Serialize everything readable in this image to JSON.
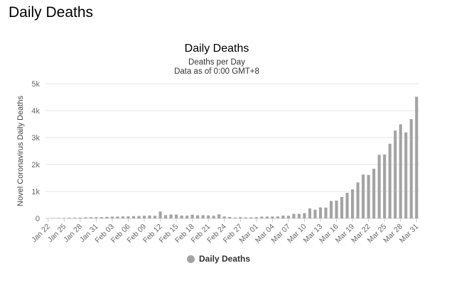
{
  "page": {
    "heading": "Daily Deaths"
  },
  "colors": {
    "bar": "#a3a3a3",
    "grid": "#e6e6e6",
    "axis": "#cccccc",
    "text": "#666666"
  },
  "chart_data": {
    "type": "bar",
    "title": "Daily Deaths",
    "subtitle": "Deaths per Day",
    "subtitle2": "Data as of 0:00 GMT+8",
    "ylabel": "Novel Coronavirus Daily Deaths",
    "xlabel": "",
    "ylim": [
      0,
      5000
    ],
    "yticks": [
      0,
      1000,
      2000,
      3000,
      4000,
      5000
    ],
    "ytick_labels": [
      "0",
      "1k",
      "2k",
      "3k",
      "4k",
      "5k"
    ],
    "grid": true,
    "legend_position": "bottom-center",
    "xtick_labels": [
      "Jan 22",
      "Jan 25",
      "Jan 28",
      "Jan 31",
      "Feb 03",
      "Feb 06",
      "Feb 09",
      "Feb 12",
      "Feb 15",
      "Feb 18",
      "Feb 21",
      "Feb 24",
      "Feb 27",
      "Mar 01",
      "Mar 04",
      "Mar 07",
      "Mar 10",
      "Mar 13",
      "Mar 16",
      "Mar 19",
      "Mar 22",
      "Mar 25",
      "Mar 28",
      "Mar 31"
    ],
    "xtick_every": 3,
    "categories": [
      "Jan 22",
      "Jan 23",
      "Jan 24",
      "Jan 25",
      "Jan 26",
      "Jan 27",
      "Jan 28",
      "Jan 29",
      "Jan 30",
      "Jan 31",
      "Feb 01",
      "Feb 02",
      "Feb 03",
      "Feb 04",
      "Feb 05",
      "Feb 06",
      "Feb 07",
      "Feb 08",
      "Feb 09",
      "Feb 10",
      "Feb 11",
      "Feb 12",
      "Feb 13",
      "Feb 14",
      "Feb 15",
      "Feb 16",
      "Feb 17",
      "Feb 18",
      "Feb 19",
      "Feb 20",
      "Feb 21",
      "Feb 22",
      "Feb 23",
      "Feb 24",
      "Feb 25",
      "Feb 26",
      "Feb 27",
      "Feb 28",
      "Feb 29",
      "Mar 01",
      "Mar 02",
      "Mar 03",
      "Mar 04",
      "Mar 05",
      "Mar 06",
      "Mar 07",
      "Mar 08",
      "Mar 09",
      "Mar 10",
      "Mar 11",
      "Mar 12",
      "Mar 13",
      "Mar 14",
      "Mar 15",
      "Mar 16",
      "Mar 17",
      "Mar 18",
      "Mar 19",
      "Mar 20",
      "Mar 21",
      "Mar 22",
      "Mar 23",
      "Mar 24",
      "Mar 25",
      "Mar 26",
      "Mar 27",
      "Mar 28",
      "Mar 29",
      "Mar 30",
      "Mar 31"
    ],
    "series": [
      {
        "name": "Daily Deaths",
        "values": [
          0,
          9,
          15,
          15,
          24,
          26,
          26,
          38,
          43,
          46,
          45,
          57,
          64,
          66,
          73,
          73,
          86,
          89,
          97,
          108,
          97,
          254,
          121,
          143,
          142,
          105,
          98,
          136,
          115,
          118,
          109,
          97,
          150,
          71,
          52,
          29,
          44,
          37,
          35,
          42,
          64,
          66,
          68,
          71,
          103,
          97,
          167,
          167,
          195,
          370,
          320,
          406,
          402,
          645,
          660,
          789,
          949,
          1075,
          1335,
          1627,
          1611,
          1841,
          2360,
          2370,
          2770,
          3259,
          3491,
          3192,
          3682,
          4516
        ]
      }
    ]
  }
}
